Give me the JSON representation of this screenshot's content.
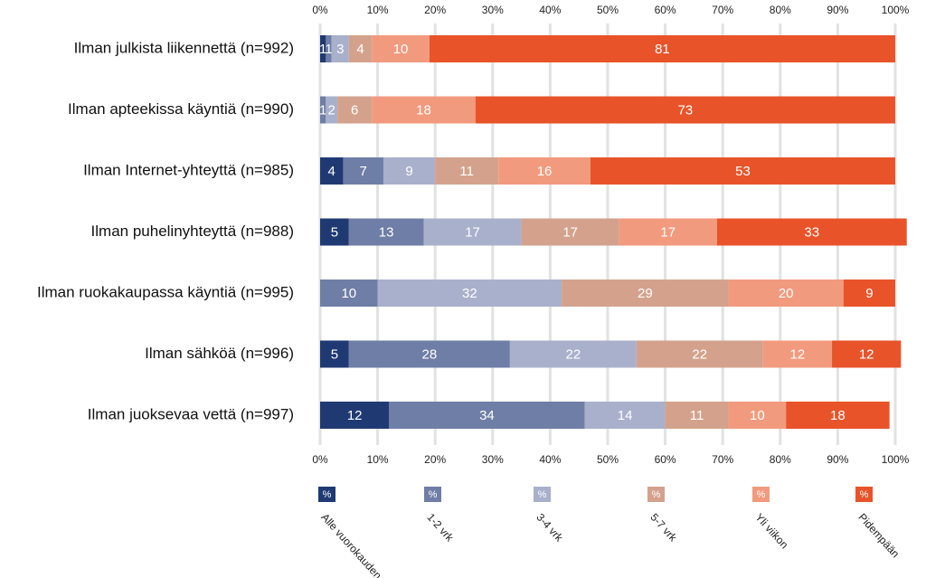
{
  "chart_data": {
    "type": "stacked_bar_horizontal",
    "categories": [
      "Ilman julkista liikennettä (n=992)",
      "Ilman apteekissa käyntiä (n=990)",
      "Ilman Internet-yhteyttä (n=985)",
      "Ilman puhelinyhteyttä (n=988)",
      "Ilman ruokakaupassa käyntiä (n=995)",
      "Ilman sähköä (n=996)",
      "Ilman juoksevaa vettä (n=997)"
    ],
    "series": [
      {
        "name": "Alle vuorokauden",
        "color": "#1f3a73",
        "values": [
          1,
          null,
          4,
          5,
          null,
          5,
          12
        ]
      },
      {
        "name": "1-2 vrk",
        "color": "#6f7ea6",
        "values": [
          1,
          1,
          7,
          13,
          10,
          28,
          34
        ]
      },
      {
        "name": "3-4 vrk",
        "color": "#a9b0cc",
        "values": [
          3,
          2,
          9,
          17,
          32,
          22,
          14
        ]
      },
      {
        "name": "5-7 vrk",
        "color": "#d4a28c",
        "values": [
          4,
          6,
          11,
          17,
          29,
          22,
          11
        ]
      },
      {
        "name": "Yli viikon",
        "color": "#f29a7e",
        "values": [
          10,
          18,
          16,
          17,
          20,
          12,
          10
        ]
      },
      {
        "name": "Pidempään",
        "color": "#e8532a",
        "values": [
          81,
          73,
          53,
          33,
          9,
          12,
          18
        ]
      }
    ],
    "legend_marker_label": "%",
    "xlim": [
      0,
      100
    ],
    "xticks": [
      {
        "value": 0,
        "label": "0%"
      },
      {
        "value": 10,
        "label": "10%"
      },
      {
        "value": 20,
        "label": "20%"
      },
      {
        "value": 30,
        "label": "30%"
      },
      {
        "value": 40,
        "label": "40%"
      },
      {
        "value": 50,
        "label": "50%"
      },
      {
        "value": 60,
        "label": "60%"
      },
      {
        "value": 70,
        "label": "70%"
      },
      {
        "value": 80,
        "label": "80%"
      },
      {
        "value": 90,
        "label": "90%"
      },
      {
        "value": 100,
        "label": "100%"
      }
    ],
    "grid": true
  }
}
